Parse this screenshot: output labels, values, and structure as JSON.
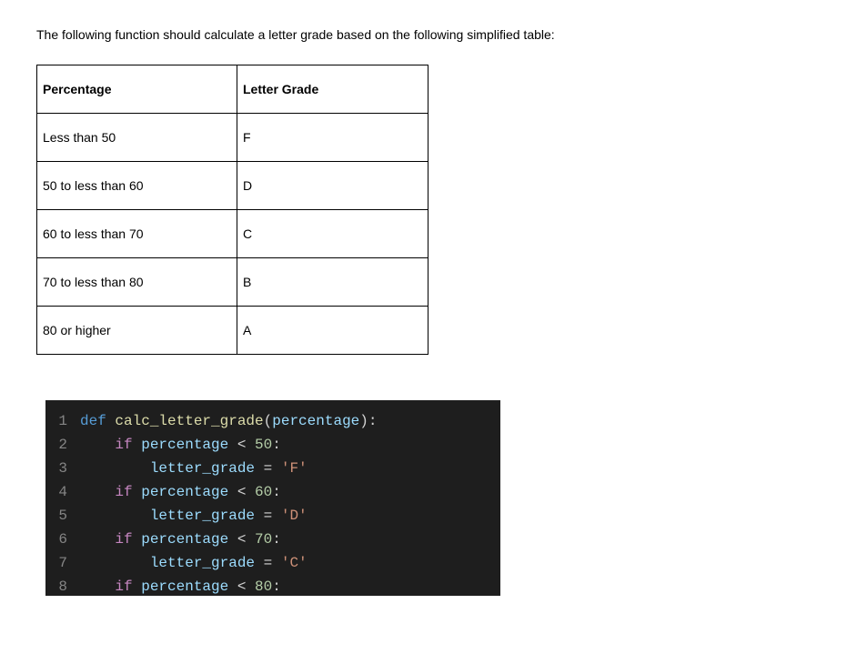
{
  "intro": "The following function should calculate a letter grade based on the following simplified table:",
  "table": {
    "headers": {
      "percentage": "Percentage",
      "letter": "Letter Grade"
    },
    "rows": [
      {
        "percentage": "Less than 50",
        "letter": "F"
      },
      {
        "percentage": "50 to less than 60",
        "letter": "D"
      },
      {
        "percentage": "60 to less than 70",
        "letter": "C"
      },
      {
        "percentage": "70 to less than 80",
        "letter": "B"
      },
      {
        "percentage": "80 or higher",
        "letter": "A"
      }
    ],
    "col_widths": {
      "percentage": 220,
      "letter": 210
    },
    "cell_padding": "18px 6px",
    "border_color": "#000000"
  },
  "code": {
    "background": "#1e1e1e",
    "line_number_color": "#858585",
    "font_size": 16,
    "line_height": 26,
    "colors": {
      "keyword": "#c586c0",
      "def": "#569cd6",
      "funcname": "#dcdcaa",
      "variable": "#9cdcfe",
      "punctuation": "#d4d4d4",
      "number": "#b5cea8",
      "string": "#ce9178",
      "indent_guide": "#404040"
    },
    "lines": [
      {
        "n": "1",
        "tokens": [
          {
            "t": "def ",
            "c": "tok-def"
          },
          {
            "t": "calc_letter_grade",
            "c": "tok-funcname"
          },
          {
            "t": "(",
            "c": "tok-punc"
          },
          {
            "t": "percentage",
            "c": "tok-param"
          },
          {
            "t": "):",
            "c": "tok-punc"
          }
        ]
      },
      {
        "n": "2",
        "tokens": [
          {
            "t": "    ",
            "c": ""
          },
          {
            "t": "if",
            "c": "tok-keyword"
          },
          {
            "t": " ",
            "c": ""
          },
          {
            "t": "percentage",
            "c": "tok-var"
          },
          {
            "t": " < ",
            "c": "tok-op"
          },
          {
            "t": "50",
            "c": "tok-number"
          },
          {
            "t": ":",
            "c": "tok-punc"
          }
        ]
      },
      {
        "n": "3",
        "tokens": [
          {
            "t": "    ",
            "c": ""
          },
          {
            "t": "    ",
            "c": "indent-guide"
          },
          {
            "t": "letter_grade",
            "c": "tok-var"
          },
          {
            "t": " = ",
            "c": "tok-op"
          },
          {
            "t": "'F'",
            "c": "tok-string"
          }
        ]
      },
      {
        "n": "4",
        "tokens": [
          {
            "t": "    ",
            "c": ""
          },
          {
            "t": "if",
            "c": "tok-keyword"
          },
          {
            "t": " ",
            "c": ""
          },
          {
            "t": "percentage",
            "c": "tok-var"
          },
          {
            "t": " < ",
            "c": "tok-op"
          },
          {
            "t": "60",
            "c": "tok-number"
          },
          {
            "t": ":",
            "c": "tok-punc"
          }
        ]
      },
      {
        "n": "5",
        "tokens": [
          {
            "t": "    ",
            "c": ""
          },
          {
            "t": "    ",
            "c": "indent-guide"
          },
          {
            "t": "letter_grade",
            "c": "tok-var"
          },
          {
            "t": " = ",
            "c": "tok-op"
          },
          {
            "t": "'D'",
            "c": "tok-string"
          }
        ]
      },
      {
        "n": "6",
        "tokens": [
          {
            "t": "    ",
            "c": ""
          },
          {
            "t": "if",
            "c": "tok-keyword"
          },
          {
            "t": " ",
            "c": ""
          },
          {
            "t": "percentage",
            "c": "tok-var"
          },
          {
            "t": " < ",
            "c": "tok-op"
          },
          {
            "t": "70",
            "c": "tok-number"
          },
          {
            "t": ":",
            "c": "tok-punc"
          }
        ]
      },
      {
        "n": "7",
        "tokens": [
          {
            "t": "    ",
            "c": ""
          },
          {
            "t": "    ",
            "c": "indent-guide"
          },
          {
            "t": "letter_grade",
            "c": "tok-var"
          },
          {
            "t": " = ",
            "c": "tok-op"
          },
          {
            "t": "'C'",
            "c": "tok-string"
          }
        ]
      },
      {
        "n": "8",
        "tokens": [
          {
            "t": "    ",
            "c": ""
          },
          {
            "t": "if",
            "c": "tok-keyword"
          },
          {
            "t": " ",
            "c": ""
          },
          {
            "t": "percentage",
            "c": "tok-var"
          },
          {
            "t": " < ",
            "c": "tok-op"
          },
          {
            "t": "80",
            "c": "tok-number"
          },
          {
            "t": ":",
            "c": "tok-punc"
          }
        ]
      }
    ]
  }
}
